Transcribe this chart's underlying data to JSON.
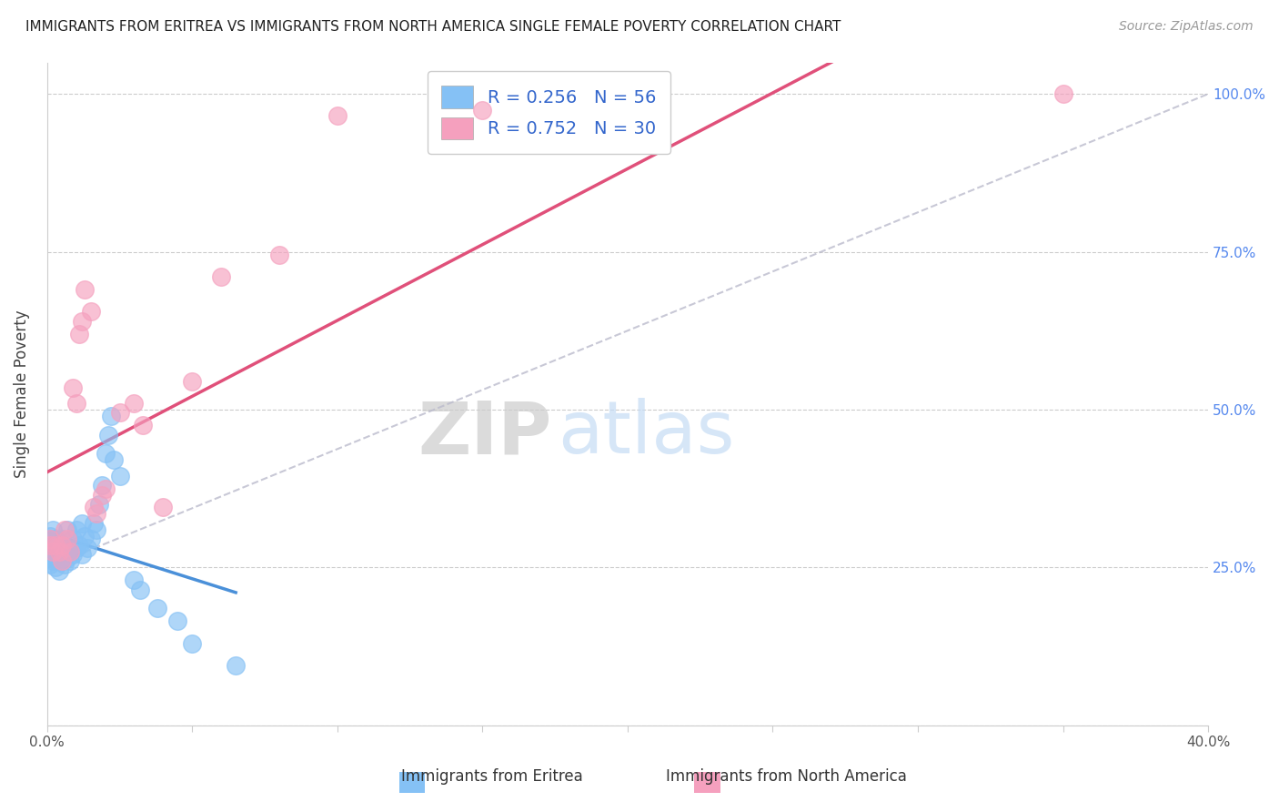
{
  "title": "IMMIGRANTS FROM ERITREA VS IMMIGRANTS FROM NORTH AMERICA SINGLE FEMALE POVERTY CORRELATION CHART",
  "source": "Source: ZipAtlas.com",
  "ylabel": "Single Female Poverty",
  "xlim": [
    0.0,
    0.4
  ],
  "ylim": [
    0.0,
    1.05
  ],
  "legend_label1": "Immigrants from Eritrea",
  "legend_label2": "Immigrants from North America",
  "R1": 0.256,
  "N1": 56,
  "R2": 0.752,
  "N2": 30,
  "color_blue": "#85C1F5",
  "color_pink": "#F5A0BE",
  "color_blue_line": "#4A90D9",
  "color_pink_line": "#E0507A",
  "color_ref_line": "#BBBBCC",
  "watermark_zip": "ZIP",
  "watermark_atlas": "atlas",
  "blue_x": [
    0.001,
    0.001,
    0.001,
    0.001,
    0.001,
    0.001,
    0.002,
    0.002,
    0.002,
    0.002,
    0.002,
    0.003,
    0.003,
    0.003,
    0.003,
    0.003,
    0.004,
    0.004,
    0.004,
    0.005,
    0.005,
    0.005,
    0.006,
    0.006,
    0.007,
    0.007,
    0.007,
    0.008,
    0.008,
    0.009,
    0.009,
    0.01,
    0.01,
    0.011,
    0.012,
    0.012,
    0.013,
    0.014,
    0.015,
    0.016,
    0.017,
    0.018,
    0.019,
    0.02,
    0.021,
    0.022,
    0.023,
    0.025,
    0.03,
    0.032,
    0.038,
    0.045,
    0.05,
    0.065
  ],
  "blue_y": [
    0.285,
    0.295,
    0.275,
    0.265,
    0.255,
    0.3,
    0.27,
    0.28,
    0.29,
    0.26,
    0.31,
    0.25,
    0.265,
    0.275,
    0.285,
    0.295,
    0.245,
    0.27,
    0.29,
    0.26,
    0.275,
    0.295,
    0.255,
    0.28,
    0.265,
    0.28,
    0.31,
    0.26,
    0.275,
    0.27,
    0.295,
    0.28,
    0.31,
    0.285,
    0.27,
    0.32,
    0.3,
    0.28,
    0.295,
    0.32,
    0.31,
    0.35,
    0.38,
    0.43,
    0.46,
    0.49,
    0.42,
    0.395,
    0.23,
    0.215,
    0.185,
    0.165,
    0.13,
    0.095
  ],
  "pink_x": [
    0.001,
    0.001,
    0.002,
    0.003,
    0.004,
    0.005,
    0.005,
    0.006,
    0.007,
    0.008,
    0.009,
    0.01,
    0.011,
    0.012,
    0.013,
    0.015,
    0.016,
    0.017,
    0.019,
    0.02,
    0.025,
    0.03,
    0.033,
    0.04,
    0.05,
    0.06,
    0.08,
    0.1,
    0.15,
    0.35
  ],
  "pink_y": [
    0.285,
    0.295,
    0.275,
    0.285,
    0.275,
    0.26,
    0.285,
    0.31,
    0.295,
    0.275,
    0.535,
    0.51,
    0.62,
    0.64,
    0.69,
    0.655,
    0.345,
    0.335,
    0.365,
    0.375,
    0.495,
    0.51,
    0.475,
    0.345,
    0.545,
    0.71,
    0.745,
    0.965,
    0.975,
    1.0
  ]
}
